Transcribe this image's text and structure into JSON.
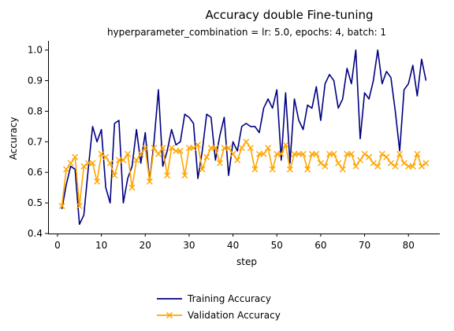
{
  "chart_data": {
    "type": "line",
    "title": "Accuracy double Fine-tuning",
    "subtitle": "hyperparameter_combination = lr: 5.0, epochs: 4, batch: 1",
    "xlabel": "step",
    "ylabel": "Accuracy",
    "xlim": [
      -2.15,
      87.15
    ],
    "ylim": [
      0.4,
      1.03
    ],
    "xticks": [
      0,
      10,
      20,
      30,
      40,
      50,
      60,
      70,
      80
    ],
    "yticks": [
      0.4,
      0.5,
      0.6,
      0.7,
      0.8,
      0.9,
      1.0
    ],
    "xtick_labels": [
      "0",
      "10",
      "20",
      "30",
      "40",
      "50",
      "60",
      "70",
      "80"
    ],
    "ytick_labels": [
      "0.4",
      "0.5",
      "0.6",
      "0.7",
      "0.8",
      "0.9",
      "1.0"
    ],
    "grid": false,
    "legend_position": "bottom-center",
    "series": [
      {
        "name": "Training Accuracy",
        "color": "#000080",
        "marker": "none",
        "x": [
          1,
          2,
          3,
          4,
          5,
          6,
          7,
          8,
          9,
          10,
          11,
          12,
          13,
          14,
          15,
          16,
          17,
          18,
          19,
          20,
          21,
          22,
          23,
          24,
          25,
          26,
          27,
          28,
          29,
          30,
          31,
          32,
          33,
          34,
          35,
          36,
          37,
          38,
          39,
          40,
          41,
          42,
          43,
          44,
          45,
          46,
          47,
          48,
          49,
          50,
          51,
          52,
          53,
          54,
          55,
          56,
          57,
          58,
          59,
          60,
          61,
          62,
          63,
          64,
          65,
          66,
          67,
          68,
          69,
          70,
          71,
          72,
          73,
          74,
          75,
          76,
          77,
          78,
          79,
          80,
          81,
          82,
          83,
          84
        ],
        "y": [
          0.48,
          0.56,
          0.62,
          0.61,
          0.43,
          0.46,
          0.61,
          0.75,
          0.7,
          0.74,
          0.55,
          0.5,
          0.76,
          0.77,
          0.5,
          0.58,
          0.62,
          0.74,
          0.63,
          0.73,
          0.57,
          0.7,
          0.87,
          0.62,
          0.67,
          0.74,
          0.69,
          0.7,
          0.79,
          0.78,
          0.76,
          0.58,
          0.67,
          0.79,
          0.78,
          0.64,
          0.72,
          0.78,
          0.59,
          0.7,
          0.67,
          0.75,
          0.76,
          0.75,
          0.75,
          0.73,
          0.81,
          0.84,
          0.81,
          0.87,
          0.64,
          0.86,
          0.63,
          0.84,
          0.77,
          0.74,
          0.82,
          0.81,
          0.88,
          0.77,
          0.89,
          0.92,
          0.9,
          0.81,
          0.84,
          0.94,
          0.89,
          1.0,
          0.71,
          0.86,
          0.84,
          0.9,
          1.0,
          0.89,
          0.93,
          0.91,
          0.8,
          0.67,
          0.87,
          0.89,
          0.95,
          0.85,
          0.97,
          0.9
        ]
      },
      {
        "name": "Validation Accuracy",
        "color": "#FFA500",
        "marker": "x",
        "x": [
          1,
          2,
          3,
          4,
          5,
          6,
          7,
          8,
          9,
          10,
          11,
          12,
          13,
          14,
          15,
          16,
          17,
          18,
          19,
          20,
          21,
          22,
          23,
          24,
          25,
          26,
          27,
          28,
          29,
          30,
          31,
          32,
          33,
          34,
          35,
          36,
          37,
          38,
          39,
          40,
          41,
          42,
          43,
          44,
          45,
          46,
          47,
          48,
          49,
          50,
          51,
          52,
          53,
          54,
          55,
          56,
          57,
          58,
          59,
          60,
          61,
          62,
          63,
          64,
          65,
          66,
          67,
          68,
          69,
          70,
          71,
          72,
          73,
          74,
          75,
          76,
          77,
          78,
          79,
          80,
          81,
          82,
          83,
          84
        ],
        "y": [
          0.49,
          0.61,
          0.63,
          0.65,
          0.49,
          0.62,
          0.63,
          0.63,
          0.57,
          0.66,
          0.65,
          0.63,
          0.59,
          0.64,
          0.64,
          0.66,
          0.55,
          0.64,
          0.66,
          0.68,
          0.57,
          0.68,
          0.66,
          0.68,
          0.59,
          0.68,
          0.67,
          0.67,
          0.59,
          0.68,
          0.68,
          0.69,
          0.61,
          0.65,
          0.68,
          0.68,
          0.63,
          0.68,
          0.68,
          0.66,
          0.64,
          0.68,
          0.7,
          0.68,
          0.61,
          0.66,
          0.66,
          0.68,
          0.61,
          0.66,
          0.66,
          0.69,
          0.61,
          0.66,
          0.66,
          0.66,
          0.61,
          0.66,
          0.66,
          0.63,
          0.62,
          0.66,
          0.66,
          0.63,
          0.61,
          0.66,
          0.66,
          0.62,
          0.64,
          0.66,
          0.65,
          0.63,
          0.62,
          0.66,
          0.65,
          0.63,
          0.62,
          0.66,
          0.63,
          0.62,
          0.62,
          0.66,
          0.62,
          0.63
        ]
      }
    ]
  }
}
